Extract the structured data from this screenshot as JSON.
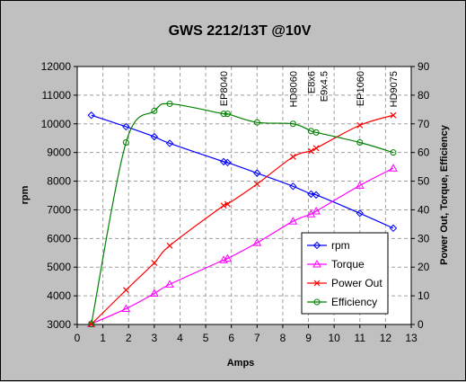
{
  "chart_data": {
    "type": "line",
    "title": "GWS 2212/13T @10V",
    "xlabel": "Amps",
    "ylabel": "rpm",
    "y2label": "Power Out, Torque, Efficiency",
    "xlim": [
      0,
      13
    ],
    "ylim": [
      3000,
      12000
    ],
    "y2lim": [
      0,
      90
    ],
    "x_ticks": [
      "0",
      "1",
      "2",
      "3",
      "4",
      "5",
      "6",
      "7",
      "8",
      "9",
      "10",
      "11",
      "12",
      "13"
    ],
    "y_ticks": [
      "3000",
      "4000",
      "5000",
      "6000",
      "7000",
      "8000",
      "9000",
      "10000",
      "11000",
      "12000"
    ],
    "y2_ticks": [
      "0",
      "10",
      "20",
      "30",
      "40",
      "50",
      "60",
      "70",
      "80",
      "90"
    ],
    "grid": true,
    "legend_position": "bottom-right",
    "series": [
      {
        "name": "rpm",
        "axis": "left",
        "color": "#0000ff",
        "marker": "diamond",
        "points": [
          [
            0.55,
            10300
          ],
          [
            1.9,
            9900
          ],
          [
            3.0,
            9550
          ],
          [
            3.6,
            9320
          ],
          [
            5.7,
            8680
          ],
          [
            5.85,
            8650
          ],
          [
            7.0,
            8280
          ],
          [
            8.4,
            7820
          ],
          [
            9.1,
            7550
          ],
          [
            9.3,
            7520
          ],
          [
            11.0,
            6880
          ],
          [
            12.3,
            6360
          ]
        ]
      },
      {
        "name": "Torque",
        "axis": "right",
        "color": "#ff00ff",
        "marker": "triangle",
        "points": [
          [
            0.55,
            0.2
          ],
          [
            1.9,
            5.5
          ],
          [
            3.0,
            10.8
          ],
          [
            3.6,
            14.0
          ],
          [
            5.7,
            22.5
          ],
          [
            5.85,
            23.0
          ],
          [
            7.0,
            28.5
          ],
          [
            8.4,
            36.0
          ],
          [
            9.1,
            38.5
          ],
          [
            9.3,
            39.5
          ],
          [
            11.0,
            48.5
          ],
          [
            12.3,
            54.5
          ]
        ]
      },
      {
        "name": "Power Out",
        "axis": "right",
        "color": "#ff0000",
        "marker": "x",
        "points": [
          [
            0.55,
            0.1
          ],
          [
            1.9,
            12.0
          ],
          [
            3.0,
            21.5
          ],
          [
            3.6,
            27.5
          ],
          [
            5.7,
            41.5
          ],
          [
            5.85,
            42.0
          ],
          [
            7.0,
            49.0
          ],
          [
            8.4,
            58.5
          ],
          [
            9.1,
            60.5
          ],
          [
            9.3,
            61.5
          ],
          [
            11.0,
            69.5
          ],
          [
            12.3,
            73.0
          ]
        ]
      },
      {
        "name": "Efficiency",
        "axis": "right",
        "color": "#008000",
        "marker": "circle",
        "points": [
          [
            0.55,
            0.1
          ],
          [
            1.9,
            63.5
          ],
          [
            3.0,
            74.5
          ],
          [
            3.6,
            77.0
          ],
          [
            5.7,
            73.5
          ],
          [
            5.85,
            73.5
          ],
          [
            7.0,
            70.5
          ],
          [
            8.4,
            70.0
          ],
          [
            9.1,
            67.5
          ],
          [
            9.3,
            67.0
          ],
          [
            11.0,
            63.5
          ],
          [
            12.3,
            60.0
          ]
        ]
      }
    ],
    "annotations": [
      {
        "text": "EP8040",
        "x": 5.7
      },
      {
        "text": "HD8060",
        "x": 8.4
      },
      {
        "text": "E8x6",
        "x": 9.1
      },
      {
        "text": "E9x4.5",
        "x": 9.6
      },
      {
        "text": "EP1060",
        "x": 11.0
      },
      {
        "text": "HD9075",
        "x": 12.3
      }
    ]
  }
}
